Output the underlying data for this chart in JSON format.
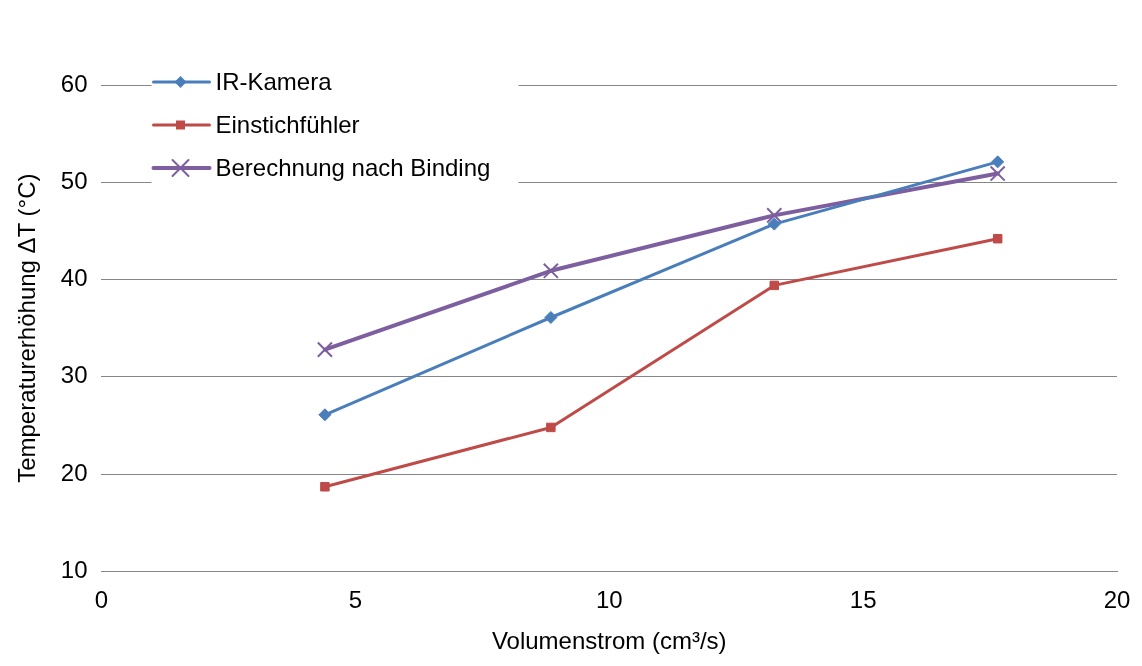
{
  "chart_data": {
    "type": "line",
    "xlabel": "Volumenstrom (cm³/s)",
    "ylabel": "Temperaturerhöhung ΔT (°C)",
    "x": [
      4.4,
      8.85,
      13.25,
      17.65
    ],
    "series": [
      {
        "name": "IR-Kamera",
        "color": "#4a7ebb",
        "marker": "diamond",
        "values": [
          26.1,
          36.1,
          45.7,
          52.1
        ]
      },
      {
        "name": "Einstichfühler",
        "color": "#be4b48",
        "marker": "square",
        "values": [
          18.7,
          24.8,
          39.4,
          44.2
        ]
      },
      {
        "name": "Berechnung nach Binding",
        "color": "#7d5fa0",
        "marker": "cross",
        "values": [
          32.8,
          40.9,
          46.6,
          50.9
        ]
      }
    ],
    "xlim": [
      0,
      20
    ],
    "xticks": [
      0,
      5,
      10,
      15,
      20
    ],
    "ylim": [
      10,
      60
    ],
    "yticks": [
      10,
      20,
      30,
      40,
      50,
      60
    ],
    "grid": "y",
    "legend": "top left",
    "line_style": "solid"
  }
}
